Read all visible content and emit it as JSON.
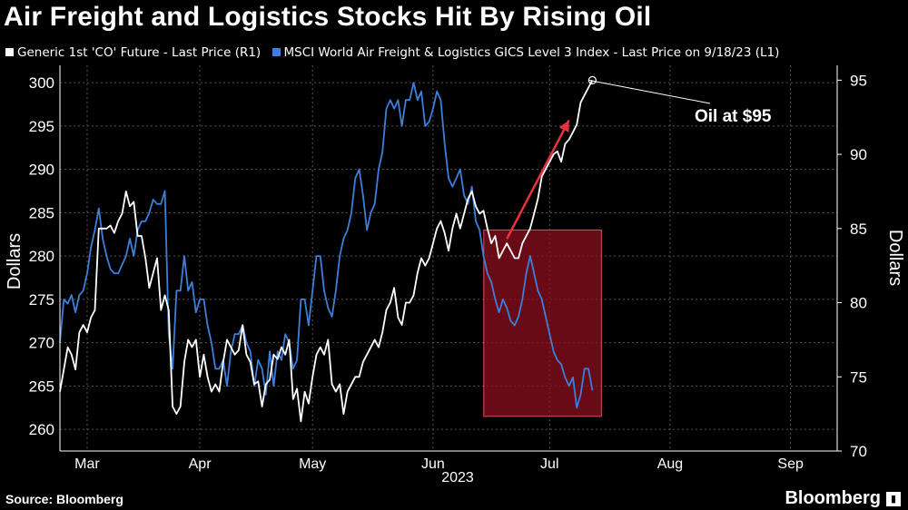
{
  "title": "Air Freight and Logistics Stocks Hit By Rising Oil",
  "legend": {
    "oil": "Generic 1st 'CO' Future - Last Price (R1)",
    "index": "MSCI World Air Freight & Logistics GICS Level 3 Index - Last Price on 9/18/23 (L1)"
  },
  "source": "Source: Bloomberg",
  "brand": "Bloomberg",
  "brand_icon": "bloomberg-terminal-icon",
  "colors": {
    "background": "#000000",
    "oil": "#ffffff",
    "index": "#3d7fd9",
    "highlight": "#8b0f1f",
    "arrow": "#e8333e"
  },
  "chart_data": {
    "type": "line",
    "title": "Air Freight and Logistics Stocks Hit By Rising Oil",
    "xlabel": "2023",
    "ylabel_left": "Dollars",
    "ylabel_right": "Dollars",
    "x_range": [
      0,
      200
    ],
    "x_ticks": [
      {
        "label": "Mar",
        "x": 7
      },
      {
        "label": "Apr",
        "x": 36
      },
      {
        "label": "May",
        "x": 65
      },
      {
        "label": "Jun",
        "x": 96
      },
      {
        "label": "Jul",
        "x": 126
      },
      {
        "label": "Aug",
        "x": 157
      },
      {
        "label": "Sep",
        "x": 188
      }
    ],
    "x_year_label": "2023",
    "y_left": {
      "range": [
        257.5,
        302
      ],
      "ticks": [
        260,
        265,
        270,
        275,
        280,
        285,
        290,
        295,
        300
      ]
    },
    "y_right": {
      "range": [
        70,
        96
      ],
      "ticks": [
        70,
        75,
        80,
        85,
        90,
        95
      ]
    },
    "series": [
      {
        "name": "MSCI World Air Freight & Logistics GICS Level 3 Index",
        "axis": "left",
        "color": "#3d7fd9",
        "points": [
          [
            0,
            270
          ],
          [
            1,
            275
          ],
          [
            2,
            274.5
          ],
          [
            3,
            275.5
          ],
          [
            4,
            273.5
          ],
          [
            5,
            275.5
          ],
          [
            6,
            276
          ],
          [
            7,
            278
          ],
          [
            8,
            281
          ],
          [
            9,
            283
          ],
          [
            10,
            285.5
          ],
          [
            11,
            282
          ],
          [
            12,
            280
          ],
          [
            13,
            278.5
          ],
          [
            14,
            278
          ],
          [
            15,
            278
          ],
          [
            16,
            279
          ],
          [
            17,
            280
          ],
          [
            18,
            282
          ],
          [
            19,
            280
          ],
          [
            20,
            283
          ],
          [
            21,
            284
          ],
          [
            22,
            284
          ],
          [
            23,
            285
          ],
          [
            24,
            286.5
          ],
          [
            25,
            286
          ],
          [
            26,
            286
          ],
          [
            27,
            287.5
          ],
          [
            28,
            271
          ],
          [
            29,
            267
          ],
          [
            30,
            276
          ],
          [
            31,
            276
          ],
          [
            32,
            280
          ],
          [
            33,
            276
          ],
          [
            34,
            277
          ],
          [
            35,
            273.5
          ],
          [
            36,
            275
          ],
          [
            37,
            275
          ],
          [
            38,
            272
          ],
          [
            39,
            270
          ],
          [
            40,
            267
          ],
          [
            41,
            267
          ],
          [
            42,
            268
          ],
          [
            43,
            265
          ],
          [
            44,
            269
          ],
          [
            45,
            271
          ],
          [
            46,
            271
          ],
          [
            47,
            272
          ],
          [
            48,
            270
          ],
          [
            49,
            269
          ],
          [
            50,
            265
          ],
          [
            51,
            268
          ],
          [
            52,
            267
          ],
          [
            53,
            264
          ],
          [
            54,
            269
          ],
          [
            55,
            265
          ],
          [
            56,
            269
          ],
          [
            57,
            268
          ],
          [
            58,
            271
          ],
          [
            59,
            270
          ],
          [
            60,
            267
          ],
          [
            61,
            268
          ],
          [
            62,
            275
          ],
          [
            63,
            275
          ],
          [
            64,
            272
          ],
          [
            65,
            276
          ],
          [
            66,
            280
          ],
          [
            67,
            280
          ],
          [
            68,
            276
          ],
          [
            69,
            274
          ],
          [
            70,
            273
          ],
          [
            71,
            276
          ],
          [
            72,
            280
          ],
          [
            73,
            282
          ],
          [
            74,
            283
          ],
          [
            75,
            285
          ],
          [
            76,
            289
          ],
          [
            77,
            290
          ],
          [
            78,
            287
          ],
          [
            79,
            283
          ],
          [
            80,
            285
          ],
          [
            81,
            286
          ],
          [
            82,
            290
          ],
          [
            83,
            292
          ],
          [
            84,
            297
          ],
          [
            85,
            298
          ],
          [
            86,
            297
          ],
          [
            87,
            298
          ],
          [
            88,
            295
          ],
          [
            89,
            298
          ],
          [
            90,
            298
          ],
          [
            91,
            300
          ],
          [
            92,
            298
          ],
          [
            93,
            299
          ],
          [
            94,
            295
          ],
          [
            95,
            295.5
          ],
          [
            96,
            297
          ],
          [
            97,
            299
          ],
          [
            98,
            298
          ],
          [
            99,
            293
          ],
          [
            100,
            289
          ],
          [
            101,
            288
          ],
          [
            102,
            289
          ],
          [
            103,
            290
          ],
          [
            104,
            287
          ],
          [
            105,
            286
          ],
          [
            106,
            288
          ],
          [
            107,
            284
          ],
          [
            108,
            283
          ],
          [
            109,
            280
          ],
          [
            110,
            278
          ],
          [
            111,
            277
          ],
          [
            112,
            275
          ],
          [
            113,
            273.5
          ],
          [
            114,
            275
          ],
          [
            115,
            274
          ],
          [
            116,
            272.5
          ],
          [
            117,
            272
          ],
          [
            118,
            273
          ],
          [
            119,
            275
          ],
          [
            120,
            278
          ],
          [
            121,
            280
          ],
          [
            122,
            278
          ],
          [
            123,
            276
          ],
          [
            124,
            275
          ],
          [
            125,
            273
          ],
          [
            126,
            271
          ],
          [
            127,
            269
          ],
          [
            128,
            268
          ],
          [
            129,
            267.5
          ],
          [
            130,
            266
          ],
          [
            131,
            265
          ],
          [
            132,
            266
          ],
          [
            133,
            262.5
          ],
          [
            134,
            264
          ],
          [
            135,
            267
          ],
          [
            136,
            267
          ],
          [
            137,
            264.5
          ]
        ]
      },
      {
        "name": "Generic 1st 'CO' Future",
        "axis": "right",
        "color": "#ffffff",
        "points": [
          [
            0,
            74
          ],
          [
            1,
            75.5
          ],
          [
            2,
            77
          ],
          [
            3,
            76.5
          ],
          [
            4,
            75.5
          ],
          [
            5,
            78
          ],
          [
            6,
            78.5
          ],
          [
            7,
            78
          ],
          [
            8,
            79
          ],
          [
            9,
            79.5
          ],
          [
            10,
            85
          ],
          [
            11,
            85
          ],
          [
            12,
            85
          ],
          [
            13,
            85.2
          ],
          [
            14,
            84.7
          ],
          [
            15,
            85.5
          ],
          [
            16,
            86
          ],
          [
            17,
            87.5
          ],
          [
            18,
            86.5
          ],
          [
            19,
            86.8
          ],
          [
            20,
            84.5
          ],
          [
            21,
            84.5
          ],
          [
            22,
            83
          ],
          [
            23,
            81
          ],
          [
            24,
            82
          ],
          [
            25,
            83
          ],
          [
            26,
            79.5
          ],
          [
            27,
            80.5
          ],
          [
            28,
            79.5
          ],
          [
            29,
            73
          ],
          [
            30,
            72.5
          ],
          [
            31,
            73
          ],
          [
            32,
            76
          ],
          [
            33,
            77.5
          ],
          [
            34,
            77
          ],
          [
            35,
            77.5
          ],
          [
            36,
            75
          ],
          [
            37,
            76.5
          ],
          [
            38,
            75
          ],
          [
            39,
            74
          ],
          [
            40,
            74.5
          ],
          [
            41,
            74
          ],
          [
            42,
            76
          ],
          [
            43,
            77.5
          ],
          [
            44,
            77
          ],
          [
            45,
            76.5
          ],
          [
            46,
            76.8
          ],
          [
            47,
            78.5
          ],
          [
            48,
            76.5
          ],
          [
            49,
            76
          ],
          [
            50,
            74.5
          ],
          [
            51,
            74.7
          ],
          [
            52,
            73
          ],
          [
            53,
            74.5
          ],
          [
            54,
            74.8
          ],
          [
            55,
            76.5
          ],
          [
            56,
            76.2
          ],
          [
            57,
            77
          ],
          [
            58,
            76.5
          ],
          [
            59,
            77.5
          ],
          [
            60,
            73.5
          ],
          [
            61,
            74.2
          ],
          [
            62,
            72
          ],
          [
            63,
            74
          ],
          [
            64,
            73.2
          ],
          [
            65,
            75
          ],
          [
            66,
            76.5
          ],
          [
            67,
            77
          ],
          [
            68,
            76.5
          ],
          [
            69,
            77.5
          ],
          [
            70,
            74.5
          ],
          [
            71,
            74
          ],
          [
            72,
            74.5
          ],
          [
            73,
            72.5
          ],
          [
            74,
            74
          ],
          [
            75,
            74.5
          ],
          [
            76,
            75
          ],
          [
            77,
            75
          ],
          [
            78,
            76
          ],
          [
            79,
            76.5
          ],
          [
            80,
            77
          ],
          [
            81,
            77.5
          ],
          [
            82,
            77
          ],
          [
            83,
            78
          ],
          [
            84,
            79.5
          ],
          [
            85,
            80
          ],
          [
            86,
            81
          ],
          [
            87,
            79
          ],
          [
            88,
            78.5
          ],
          [
            89,
            80
          ],
          [
            90,
            80
          ],
          [
            91,
            80.5
          ],
          [
            92,
            82
          ],
          [
            93,
            83
          ],
          [
            94,
            82.5
          ],
          [
            95,
            83
          ],
          [
            96,
            84
          ],
          [
            97,
            85
          ],
          [
            98,
            85.5
          ],
          [
            99,
            84.7
          ],
          [
            100,
            83.5
          ],
          [
            101,
            85
          ],
          [
            102,
            86
          ],
          [
            103,
            85
          ],
          [
            104,
            86
          ],
          [
            105,
            87
          ],
          [
            106,
            87.5
          ],
          [
            107,
            86.5
          ],
          [
            108,
            86
          ],
          [
            109,
            86.2
          ],
          [
            110,
            85
          ],
          [
            111,
            84
          ],
          [
            112,
            84.5
          ],
          [
            113,
            83
          ],
          [
            114,
            83.5
          ],
          [
            115,
            84
          ],
          [
            116,
            83.5
          ],
          [
            117,
            83
          ],
          [
            118,
            83
          ],
          [
            119,
            84
          ],
          [
            120,
            84.5
          ],
          [
            121,
            85
          ],
          [
            122,
            86
          ],
          [
            123,
            87
          ],
          [
            124,
            88.5
          ],
          [
            125,
            89
          ],
          [
            126,
            89.5
          ],
          [
            127,
            90
          ],
          [
            128,
            90.2
          ],
          [
            129,
            89.5
          ],
          [
            130,
            90.7
          ],
          [
            131,
            91
          ],
          [
            132,
            91.5
          ],
          [
            133,
            92
          ],
          [
            134,
            93.5
          ],
          [
            135,
            94
          ],
          [
            136,
            94.5
          ],
          [
            137,
            95
          ]
        ]
      }
    ],
    "annotation": {
      "text": "Oil at $95",
      "value": 95,
      "axis": "right"
    },
    "highlight": {
      "x_start": 110,
      "x_end": 137,
      "y_left_range": [
        261.5,
        283
      ]
    },
    "arrow": {
      "from": [
        115,
        84.3
      ],
      "to": [
        131,
        92.3
      ],
      "axis": "right"
    }
  }
}
